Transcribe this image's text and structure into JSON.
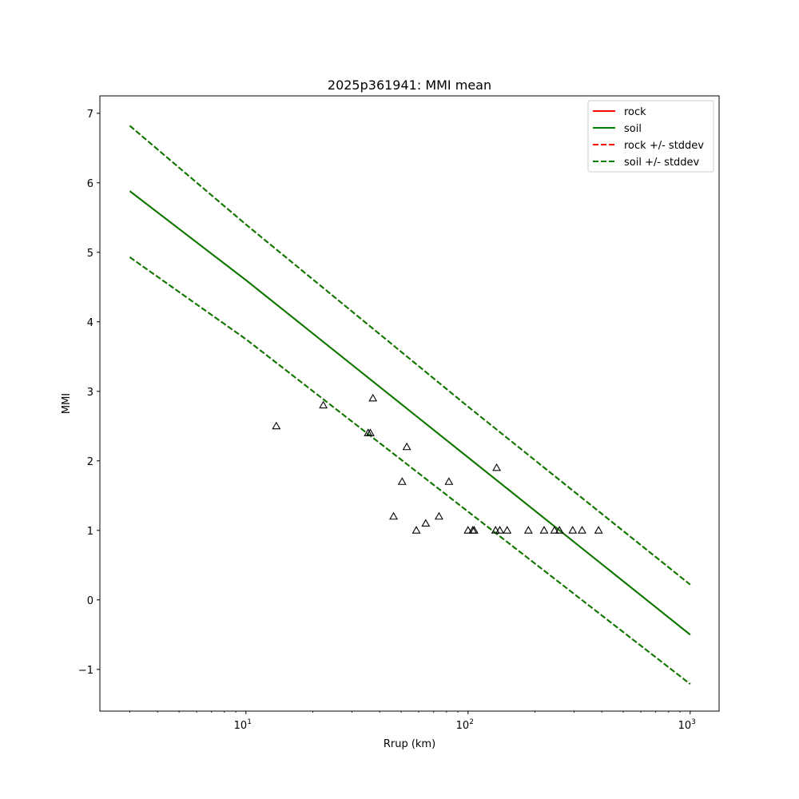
{
  "chart_data": {
    "type": "line",
    "title": "2025p361941: MMI mean",
    "xlabel": "Rrup (km)",
    "ylabel": "MMI",
    "xscale": "log",
    "xlim": [
      2.2,
      1350
    ],
    "ylim": [
      -1.6,
      7.25
    ],
    "yticks": [
      -1,
      0,
      1,
      2,
      3,
      4,
      5,
      6,
      7
    ],
    "ytick_labels": [
      "−1",
      "0",
      "1",
      "2",
      "3",
      "4",
      "5",
      "6",
      "7"
    ],
    "xticks": [
      10,
      100,
      1000
    ],
    "xtick_labels": [
      {
        "base": "10",
        "exp": "1"
      },
      {
        "base": "10",
        "exp": "2"
      },
      {
        "base": "10",
        "exp": "3"
      }
    ],
    "grid": false,
    "legend_position": "upper-right",
    "legend": [
      {
        "label": "rock",
        "color": "#ff0000",
        "style": "solid"
      },
      {
        "label": "soil",
        "color": "#008000",
        "style": "solid"
      },
      {
        "label": "rock +/- stddev",
        "color": "#ff0000",
        "style": "dashed"
      },
      {
        "label": "soil +/- stddev",
        "color": "#008000",
        "style": "dashed"
      }
    ],
    "series": [
      {
        "name": "rock",
        "color": "#ff0000",
        "style": "solid",
        "x": [
          3,
          10,
          100,
          1000
        ],
        "y": [
          5.88,
          4.6,
          2.05,
          -0.5
        ]
      },
      {
        "name": "soil",
        "color": "#008000",
        "style": "solid",
        "x": [
          3,
          10,
          100,
          1000
        ],
        "y": [
          5.88,
          4.6,
          2.05,
          -0.5
        ]
      },
      {
        "name": "rock +/- stddev",
        "color": "#ff0000",
        "style": "dashed",
        "x": [
          3,
          10,
          100,
          1000
        ],
        "y": [
          6.82,
          5.4,
          2.78,
          0.22
        ]
      },
      {
        "name": "rock +/- stddev",
        "color": "#ff0000",
        "style": "dashed",
        "x": [
          3,
          10,
          100,
          1000
        ],
        "y": [
          4.93,
          3.75,
          1.27,
          -1.21
        ]
      },
      {
        "name": "soil +/- stddev",
        "color": "#008000",
        "style": "dashed",
        "x": [
          3,
          10,
          100,
          1000
        ],
        "y": [
          6.82,
          5.4,
          2.78,
          0.22
        ]
      },
      {
        "name": "soil +/- stddev",
        "color": "#008000",
        "style": "dashed",
        "x": [
          3,
          10,
          100,
          1000
        ],
        "y": [
          4.93,
          3.75,
          1.27,
          -1.21
        ]
      }
    ],
    "observations": {
      "marker": "triangle-open",
      "color": "#000000",
      "points": [
        {
          "x": 13.7,
          "y": 2.5
        },
        {
          "x": 22.3,
          "y": 2.8
        },
        {
          "x": 35.5,
          "y": 2.4
        },
        {
          "x": 36.3,
          "y": 2.4
        },
        {
          "x": 37.3,
          "y": 2.9
        },
        {
          "x": 46.2,
          "y": 1.2
        },
        {
          "x": 50.5,
          "y": 1.7
        },
        {
          "x": 53.0,
          "y": 2.2
        },
        {
          "x": 58.5,
          "y": 1.0
        },
        {
          "x": 64.5,
          "y": 1.1
        },
        {
          "x": 74.0,
          "y": 1.2
        },
        {
          "x": 82.0,
          "y": 1.7
        },
        {
          "x": 100.0,
          "y": 1.0
        },
        {
          "x": 105.0,
          "y": 1.0
        },
        {
          "x": 106.5,
          "y": 1.0
        },
        {
          "x": 133.0,
          "y": 1.0
        },
        {
          "x": 134.5,
          "y": 1.9
        },
        {
          "x": 139.0,
          "y": 1.0
        },
        {
          "x": 150.0,
          "y": 1.0
        },
        {
          "x": 187.0,
          "y": 1.0
        },
        {
          "x": 220.0,
          "y": 1.0
        },
        {
          "x": 245.0,
          "y": 1.0
        },
        {
          "x": 258.0,
          "y": 1.0
        },
        {
          "x": 296.0,
          "y": 1.0
        },
        {
          "x": 326.0,
          "y": 1.0
        },
        {
          "x": 387.0,
          "y": 1.0
        }
      ]
    }
  }
}
